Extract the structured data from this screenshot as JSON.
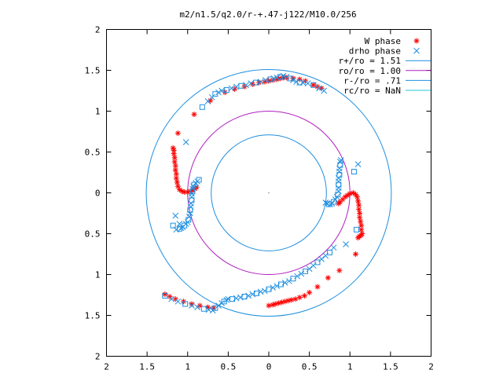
{
  "chart_data": {
    "type": "scatter",
    "title": "m2/n1.5/q2.0/r-+.47-j122/M10.0/256",
    "xlabel": "",
    "ylabel": "",
    "xlim": [
      -2,
      2
    ],
    "ylim": [
      -2,
      2
    ],
    "x_tick_labels": [
      "2",
      "1.5",
      "1",
      "0.5",
      "0",
      "0.5",
      "1",
      "1.5",
      "2"
    ],
    "y_tick_labels": [
      "2",
      "1.5",
      "1",
      "0.5",
      "0",
      "0.5",
      "1",
      "1.5",
      "2"
    ],
    "x_tick_values": [
      -2,
      -1.5,
      -1,
      -0.5,
      0,
      0.5,
      1,
      1.5,
      2
    ],
    "y_tick_values": [
      2,
      1.5,
      1,
      0.5,
      0,
      -0.5,
      -1,
      -1.5,
      -2
    ],
    "grid": false,
    "legend_position": "top-right",
    "circles": [
      {
        "name": "r+/ro = 1.51",
        "radius": 1.51,
        "color": "#1f8fdf"
      },
      {
        "name": "ro/ro = 1.00",
        "radius": 1.0,
        "color": "#b020c0"
      },
      {
        "name": "r-/ro = .71",
        "radius": 0.71,
        "color": "#1f8fdf"
      },
      {
        "name": "rc/ro = NaN",
        "radius": null,
        "color": "#20c8d8"
      }
    ],
    "series": [
      {
        "name": "W phase",
        "marker": "plus-star",
        "color": "#ff0000",
        "points": [
          [
            0.0,
            -1.38
          ],
          [
            0.05,
            -1.37
          ],
          [
            0.08,
            -1.36
          ],
          [
            0.12,
            -1.35
          ],
          [
            0.16,
            -1.34
          ],
          [
            0.2,
            -1.33
          ],
          [
            0.24,
            -1.32
          ],
          [
            0.28,
            -1.31
          ],
          [
            0.33,
            -1.3
          ],
          [
            0.38,
            -1.28
          ],
          [
            0.44,
            -1.26
          ],
          [
            0.5,
            -1.22
          ],
          [
            0.6,
            -1.15
          ],
          [
            0.73,
            -1.04
          ],
          [
            0.87,
            -0.95
          ],
          [
            1.07,
            -0.75
          ],
          [
            1.1,
            -0.55
          ],
          [
            1.12,
            -0.53
          ],
          [
            1.14,
            -0.52
          ],
          [
            1.15,
            -0.5
          ],
          [
            1.14,
            -0.45
          ],
          [
            1.14,
            -0.4
          ],
          [
            1.13,
            -0.35
          ],
          [
            1.12,
            -0.3
          ],
          [
            1.12,
            -0.25
          ],
          [
            1.11,
            -0.2
          ],
          [
            1.11,
            -0.15
          ],
          [
            1.1,
            -0.1
          ],
          [
            1.09,
            -0.05
          ],
          [
            1.07,
            -0.02
          ],
          [
            1.04,
            0.0
          ],
          [
            1.0,
            -0.01
          ],
          [
            0.97,
            -0.03
          ],
          [
            0.94,
            -0.05
          ],
          [
            0.91,
            -0.08
          ],
          [
            0.88,
            -0.11
          ],
          [
            0.86,
            -0.13
          ],
          [
            -1.18,
            0.55
          ],
          [
            -1.17,
            0.52
          ],
          [
            -1.17,
            0.48
          ],
          [
            -1.16,
            0.43
          ],
          [
            -1.16,
            0.38
          ],
          [
            -1.15,
            0.33
          ],
          [
            -1.15,
            0.28
          ],
          [
            -1.14,
            0.23
          ],
          [
            -1.14,
            0.18
          ],
          [
            -1.13,
            0.13
          ],
          [
            -1.12,
            0.08
          ],
          [
            -1.1,
            0.04
          ],
          [
            -1.07,
            0.02
          ],
          [
            -1.04,
            0.01
          ],
          [
            -1.0,
            0.01
          ],
          [
            -0.97,
            0.02
          ],
          [
            -0.94,
            0.03
          ],
          [
            -0.91,
            0.05
          ],
          [
            -0.89,
            0.07
          ],
          [
            -1.12,
            0.73
          ],
          [
            -0.92,
            0.96
          ],
          [
            -0.72,
            1.13
          ],
          [
            -0.54,
            1.23
          ],
          [
            -0.42,
            1.27
          ],
          [
            -0.3,
            1.3
          ],
          [
            -0.2,
            1.33
          ],
          [
            -0.12,
            1.35
          ],
          [
            -0.05,
            1.36
          ],
          [
            0.0,
            1.37
          ],
          [
            0.05,
            1.38
          ],
          [
            0.1,
            1.39
          ],
          [
            0.14,
            1.4
          ],
          [
            0.18,
            1.41
          ],
          [
            0.22,
            1.41
          ],
          [
            0.3,
            1.4
          ],
          [
            0.38,
            1.39
          ],
          [
            0.45,
            1.37
          ],
          [
            0.55,
            1.32
          ],
          [
            0.6,
            1.3
          ],
          [
            0.65,
            1.28
          ],
          [
            -1.28,
            -1.24
          ],
          [
            -1.22,
            -1.27
          ],
          [
            -1.15,
            -1.3
          ],
          [
            -1.05,
            -1.33
          ],
          [
            -0.95,
            -1.36
          ],
          [
            -0.85,
            -1.38
          ],
          [
            -0.75,
            -1.4
          ],
          [
            -0.68,
            -1.41
          ]
        ]
      },
      {
        "name": "drho phase",
        "marker": "x-square",
        "color": "#1f8fdf",
        "points": [
          [
            -1.28,
            -1.26
          ],
          [
            -1.2,
            -1.3
          ],
          [
            -1.12,
            -1.33
          ],
          [
            -1.03,
            -1.36
          ],
          [
            -0.95,
            -1.38
          ],
          [
            -0.88,
            -1.4
          ],
          [
            -0.8,
            -1.42
          ],
          [
            -0.74,
            -1.43
          ],
          [
            -0.69,
            -1.44
          ],
          [
            -0.66,
            -1.41
          ],
          [
            -0.62,
            -1.38
          ],
          [
            -0.58,
            -1.35
          ],
          [
            -0.55,
            -1.33
          ],
          [
            -0.52,
            -1.31
          ],
          [
            -0.5,
            -1.3
          ],
          [
            -0.45,
            -1.3
          ],
          [
            -0.4,
            -1.29
          ],
          [
            -0.35,
            -1.28
          ],
          [
            -0.3,
            -1.27
          ],
          [
            -0.25,
            -1.26
          ],
          [
            -0.2,
            -1.24
          ],
          [
            -0.15,
            -1.23
          ],
          [
            -0.1,
            -1.21
          ],
          [
            -0.05,
            -1.2
          ],
          [
            0.0,
            -1.18
          ],
          [
            0.05,
            -1.16
          ],
          [
            0.1,
            -1.14
          ],
          [
            0.15,
            -1.12
          ],
          [
            0.2,
            -1.1
          ],
          [
            0.25,
            -1.08
          ],
          [
            0.3,
            -1.05
          ],
          [
            0.35,
            -1.02
          ],
          [
            0.4,
            -0.99
          ],
          [
            0.45,
            -0.96
          ],
          [
            0.5,
            -0.93
          ],
          [
            0.55,
            -0.89
          ],
          [
            0.6,
            -0.85
          ],
          [
            0.65,
            -0.81
          ],
          [
            0.7,
            -0.77
          ],
          [
            0.75,
            -0.73
          ],
          [
            0.8,
            -0.67
          ],
          [
            0.95,
            -0.63
          ],
          [
            1.08,
            -0.45
          ],
          [
            0.7,
            -0.12
          ],
          [
            0.72,
            -0.13
          ],
          [
            0.74,
            -0.14
          ],
          [
            0.76,
            -0.14
          ],
          [
            0.78,
            -0.13
          ],
          [
            0.8,
            -0.11
          ],
          [
            0.82,
            -0.08
          ],
          [
            0.84,
            -0.05
          ],
          [
            0.85,
            -0.02
          ],
          [
            0.86,
            0.02
          ],
          [
            0.86,
            0.06
          ],
          [
            0.86,
            0.1
          ],
          [
            0.86,
            0.14
          ],
          [
            0.86,
            0.18
          ],
          [
            0.87,
            0.22
          ],
          [
            0.87,
            0.26
          ],
          [
            0.87,
            0.3
          ],
          [
            0.88,
            0.34
          ],
          [
            0.88,
            0.38
          ],
          [
            0.89,
            0.4
          ],
          [
            1.05,
            0.26
          ],
          [
            1.1,
            0.35
          ],
          [
            -0.58,
            1.25
          ],
          [
            -0.52,
            1.26
          ],
          [
            -0.46,
            1.28
          ],
          [
            -0.4,
            1.3
          ],
          [
            -0.34,
            1.31
          ],
          [
            -0.28,
            1.32
          ],
          [
            -0.22,
            1.34
          ],
          [
            -0.16,
            1.35
          ],
          [
            -0.1,
            1.36
          ],
          [
            -0.04,
            1.38
          ],
          [
            0.02,
            1.39
          ],
          [
            0.06,
            1.4
          ],
          [
            0.1,
            1.41
          ],
          [
            0.14,
            1.42
          ],
          [
            0.18,
            1.43
          ],
          [
            0.22,
            1.42
          ],
          [
            0.26,
            1.4
          ],
          [
            0.3,
            1.38
          ],
          [
            0.34,
            1.36
          ],
          [
            0.38,
            1.35
          ],
          [
            0.42,
            1.35
          ],
          [
            0.48,
            1.34
          ],
          [
            0.55,
            1.32
          ],
          [
            0.62,
            1.28
          ],
          [
            0.68,
            1.25
          ],
          [
            -0.82,
            1.05
          ],
          [
            -0.75,
            1.12
          ],
          [
            -0.7,
            1.17
          ],
          [
            -0.66,
            1.21
          ],
          [
            -0.62,
            1.23
          ],
          [
            -1.02,
            0.62
          ],
          [
            -0.86,
            0.16
          ],
          [
            -0.88,
            0.14
          ],
          [
            -0.9,
            0.12
          ],
          [
            -0.92,
            0.1
          ],
          [
            -0.93,
            0.08
          ],
          [
            -0.94,
            0.05
          ],
          [
            -0.94,
            0.02
          ],
          [
            -0.95,
            -0.01
          ],
          [
            -0.95,
            -0.05
          ],
          [
            -0.95,
            -0.09
          ],
          [
            -0.96,
            -0.13
          ],
          [
            -0.96,
            -0.17
          ],
          [
            -0.97,
            -0.21
          ],
          [
            -0.97,
            -0.25
          ],
          [
            -0.98,
            -0.29
          ],
          [
            -0.99,
            -0.33
          ],
          [
            -1.0,
            -0.36
          ],
          [
            -1.02,
            -0.38
          ],
          [
            -1.04,
            -0.4
          ],
          [
            -1.06,
            -0.42
          ],
          [
            -1.08,
            -0.43
          ],
          [
            -1.1,
            -0.44
          ],
          [
            -1.15,
            -0.28
          ],
          [
            -1.1,
            -0.38
          ],
          [
            -1.18,
            -0.4
          ],
          [
            -1.14,
            -0.45
          ]
        ]
      }
    ]
  }
}
